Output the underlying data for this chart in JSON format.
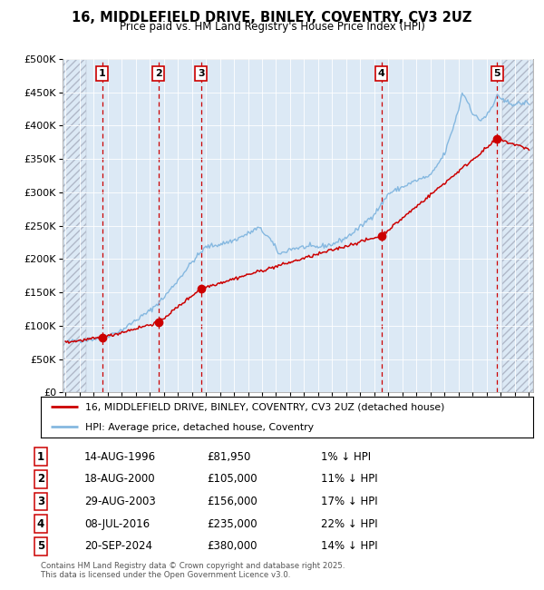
{
  "title": "16, MIDDLEFIELD DRIVE, BINLEY, COVENTRY, CV3 2UZ",
  "subtitle": "Price paid vs. HM Land Registry's House Price Index (HPI)",
  "ylim": [
    0,
    500000
  ],
  "yticks": [
    0,
    50000,
    100000,
    150000,
    200000,
    250000,
    300000,
    350000,
    400000,
    450000,
    500000
  ],
  "ytick_labels": [
    "£0",
    "£50K",
    "£100K",
    "£150K",
    "£200K",
    "£250K",
    "£300K",
    "£350K",
    "£400K",
    "£450K",
    "£500K"
  ],
  "plot_bg_color": "#dce9f5",
  "fig_bg_color": "#ffffff",
  "hpi_color": "#85b8e0",
  "price_color": "#cc0000",
  "grid_color": "#ffffff",
  "hatch_color": "#b0b8c8",
  "sale_year_floats": [
    1996.625,
    2000.625,
    2003.667,
    2016.5,
    2024.75
  ],
  "sale_prices": [
    81950,
    105000,
    156000,
    235000,
    380000
  ],
  "sale_labels": [
    "1",
    "2",
    "3",
    "4",
    "5"
  ],
  "hatch_left_end": 1995.5,
  "hatch_right_start": 2025.1,
  "xlim_start": 1993.8,
  "xlim_end": 2027.3,
  "xticks": [
    1994,
    1995,
    1996,
    1997,
    1998,
    1999,
    2000,
    2001,
    2002,
    2003,
    2004,
    2005,
    2006,
    2007,
    2008,
    2009,
    2010,
    2011,
    2012,
    2013,
    2014,
    2015,
    2016,
    2017,
    2018,
    2019,
    2020,
    2021,
    2022,
    2023,
    2024,
    2025,
    2026,
    2027
  ],
  "legend_line1": "16, MIDDLEFIELD DRIVE, BINLEY, COVENTRY, CV3 2UZ (detached house)",
  "legend_line2": "HPI: Average price, detached house, Coventry",
  "table_rows": [
    {
      "num": "1",
      "date": "14-AUG-1996",
      "price": "£81,950",
      "pct": "1%",
      "arr": "↓",
      "hpi": "HPI"
    },
    {
      "num": "2",
      "date": "18-AUG-2000",
      "price": "£105,000",
      "pct": "11%",
      "arr": "↓",
      "hpi": "HPI"
    },
    {
      "num": "3",
      "date": "29-AUG-2003",
      "price": "£156,000",
      "pct": "17%",
      "arr": "↓",
      "hpi": "HPI"
    },
    {
      "num": "4",
      "date": "08-JUL-2016",
      "price": "£235,000",
      "pct": "22%",
      "arr": "↓",
      "hpi": "HPI"
    },
    {
      "num": "5",
      "date": "20-SEP-2024",
      "price": "£380,000",
      "pct": "14%",
      "arr": "↓",
      "hpi": "HPI"
    }
  ],
  "footer": "Contains HM Land Registry data © Crown copyright and database right 2025.\nThis data is licensed under the Open Government Licence v3.0.",
  "hpi_anchors_t": [
    1994.0,
    1995.0,
    1996.0,
    1997.0,
    1998.0,
    1999.0,
    2000.0,
    2001.0,
    2002.0,
    2003.0,
    2004.0,
    2005.0,
    2006.0,
    2007.0,
    2007.75,
    2008.5,
    2009.25,
    2010.0,
    2011.0,
    2012.0,
    2013.0,
    2014.0,
    2015.0,
    2016.0,
    2016.5,
    2017.0,
    2018.0,
    2019.0,
    2020.0,
    2021.0,
    2021.5,
    2022.0,
    2022.25,
    2022.75,
    2023.0,
    2023.5,
    2024.0,
    2024.5,
    2024.75,
    2025.0,
    2026.0,
    2027.0
  ],
  "hpi_anchors_v": [
    75000,
    78000,
    80000,
    85000,
    93000,
    108000,
    122000,
    142000,
    168000,
    195000,
    218000,
    222000,
    228000,
    238000,
    247000,
    232000,
    207000,
    215000,
    218000,
    218000,
    222000,
    232000,
    248000,
    268000,
    282000,
    298000,
    308000,
    318000,
    325000,
    358000,
    390000,
    425000,
    450000,
    432000,
    418000,
    408000,
    415000,
    432000,
    448000,
    438000,
    432000,
    435000
  ],
  "red_anchors_t": [
    1994.0,
    1995.5,
    1996.625,
    2000.625,
    2003.667,
    2016.5,
    2024.75,
    2027.0
  ],
  "red_anchors_v": [
    75000,
    79000,
    81950,
    105000,
    156000,
    235000,
    380000,
    365000
  ]
}
